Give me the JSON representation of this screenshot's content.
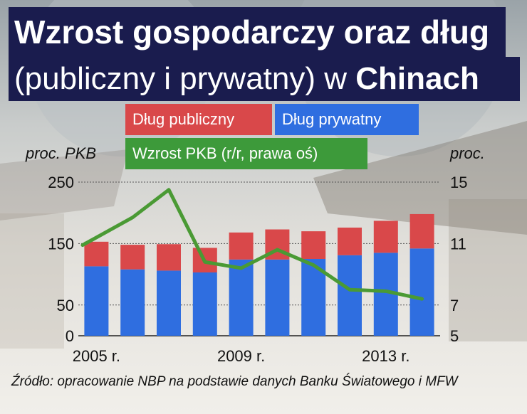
{
  "title": {
    "line1": "Wzrost gospodarczy oraz dług",
    "line2_light": "(publiczny i prywatny) w ",
    "line2_bold": "Chinach"
  },
  "legend": {
    "public": "Dług publiczny",
    "private": "Dług prywatny",
    "gdp": "Wzrost PKB (r/r, prawa oś)"
  },
  "axis": {
    "left_unit": "proc. PKB",
    "right_unit": "proc."
  },
  "source": "Źródło: opracowanie NBP na podstawie danych Banku Światowego i MFW",
  "colors": {
    "public": "#d9484a",
    "private": "#2f6ee0",
    "gdp": "#4a9a34",
    "title_bg": "#1a1c4e"
  },
  "chart_data": {
    "type": "bar",
    "categories": [
      "2005",
      "2006",
      "2007",
      "2008",
      "2009",
      "2010",
      "2011",
      "2012",
      "2013",
      "2014"
    ],
    "x_tick_labels": [
      {
        "index": 0,
        "label": "2005 r."
      },
      {
        "index": 4,
        "label": "2009 r."
      },
      {
        "index": 8,
        "label": "2013 r."
      }
    ],
    "series": [
      {
        "name": "Dług prywatny",
        "stack": "debt",
        "values": [
          113,
          108,
          106,
          103,
          124,
          124,
          125,
          131,
          135,
          142
        ]
      },
      {
        "name": "Dług publiczny",
        "stack": "debt",
        "values": [
          40,
          40,
          43,
          40,
          44,
          49,
          45,
          45,
          52,
          56
        ]
      }
    ],
    "line_series": {
      "name": "Wzrost PKB (r/r, prawa oś)",
      "axis": "right",
      "values": [
        10.9,
        12.7,
        14.5,
        9.8,
        9.4,
        10.6,
        9.6,
        8.0,
        7.9,
        7.4
      ]
    },
    "ylim_left": [
      0,
      250
    ],
    "yticks_left": [
      0,
      50,
      150,
      250
    ],
    "ylim_right": [
      5,
      15
    ],
    "yticks_right": [
      5,
      7,
      11,
      15
    ],
    "legend_position": "top"
  }
}
